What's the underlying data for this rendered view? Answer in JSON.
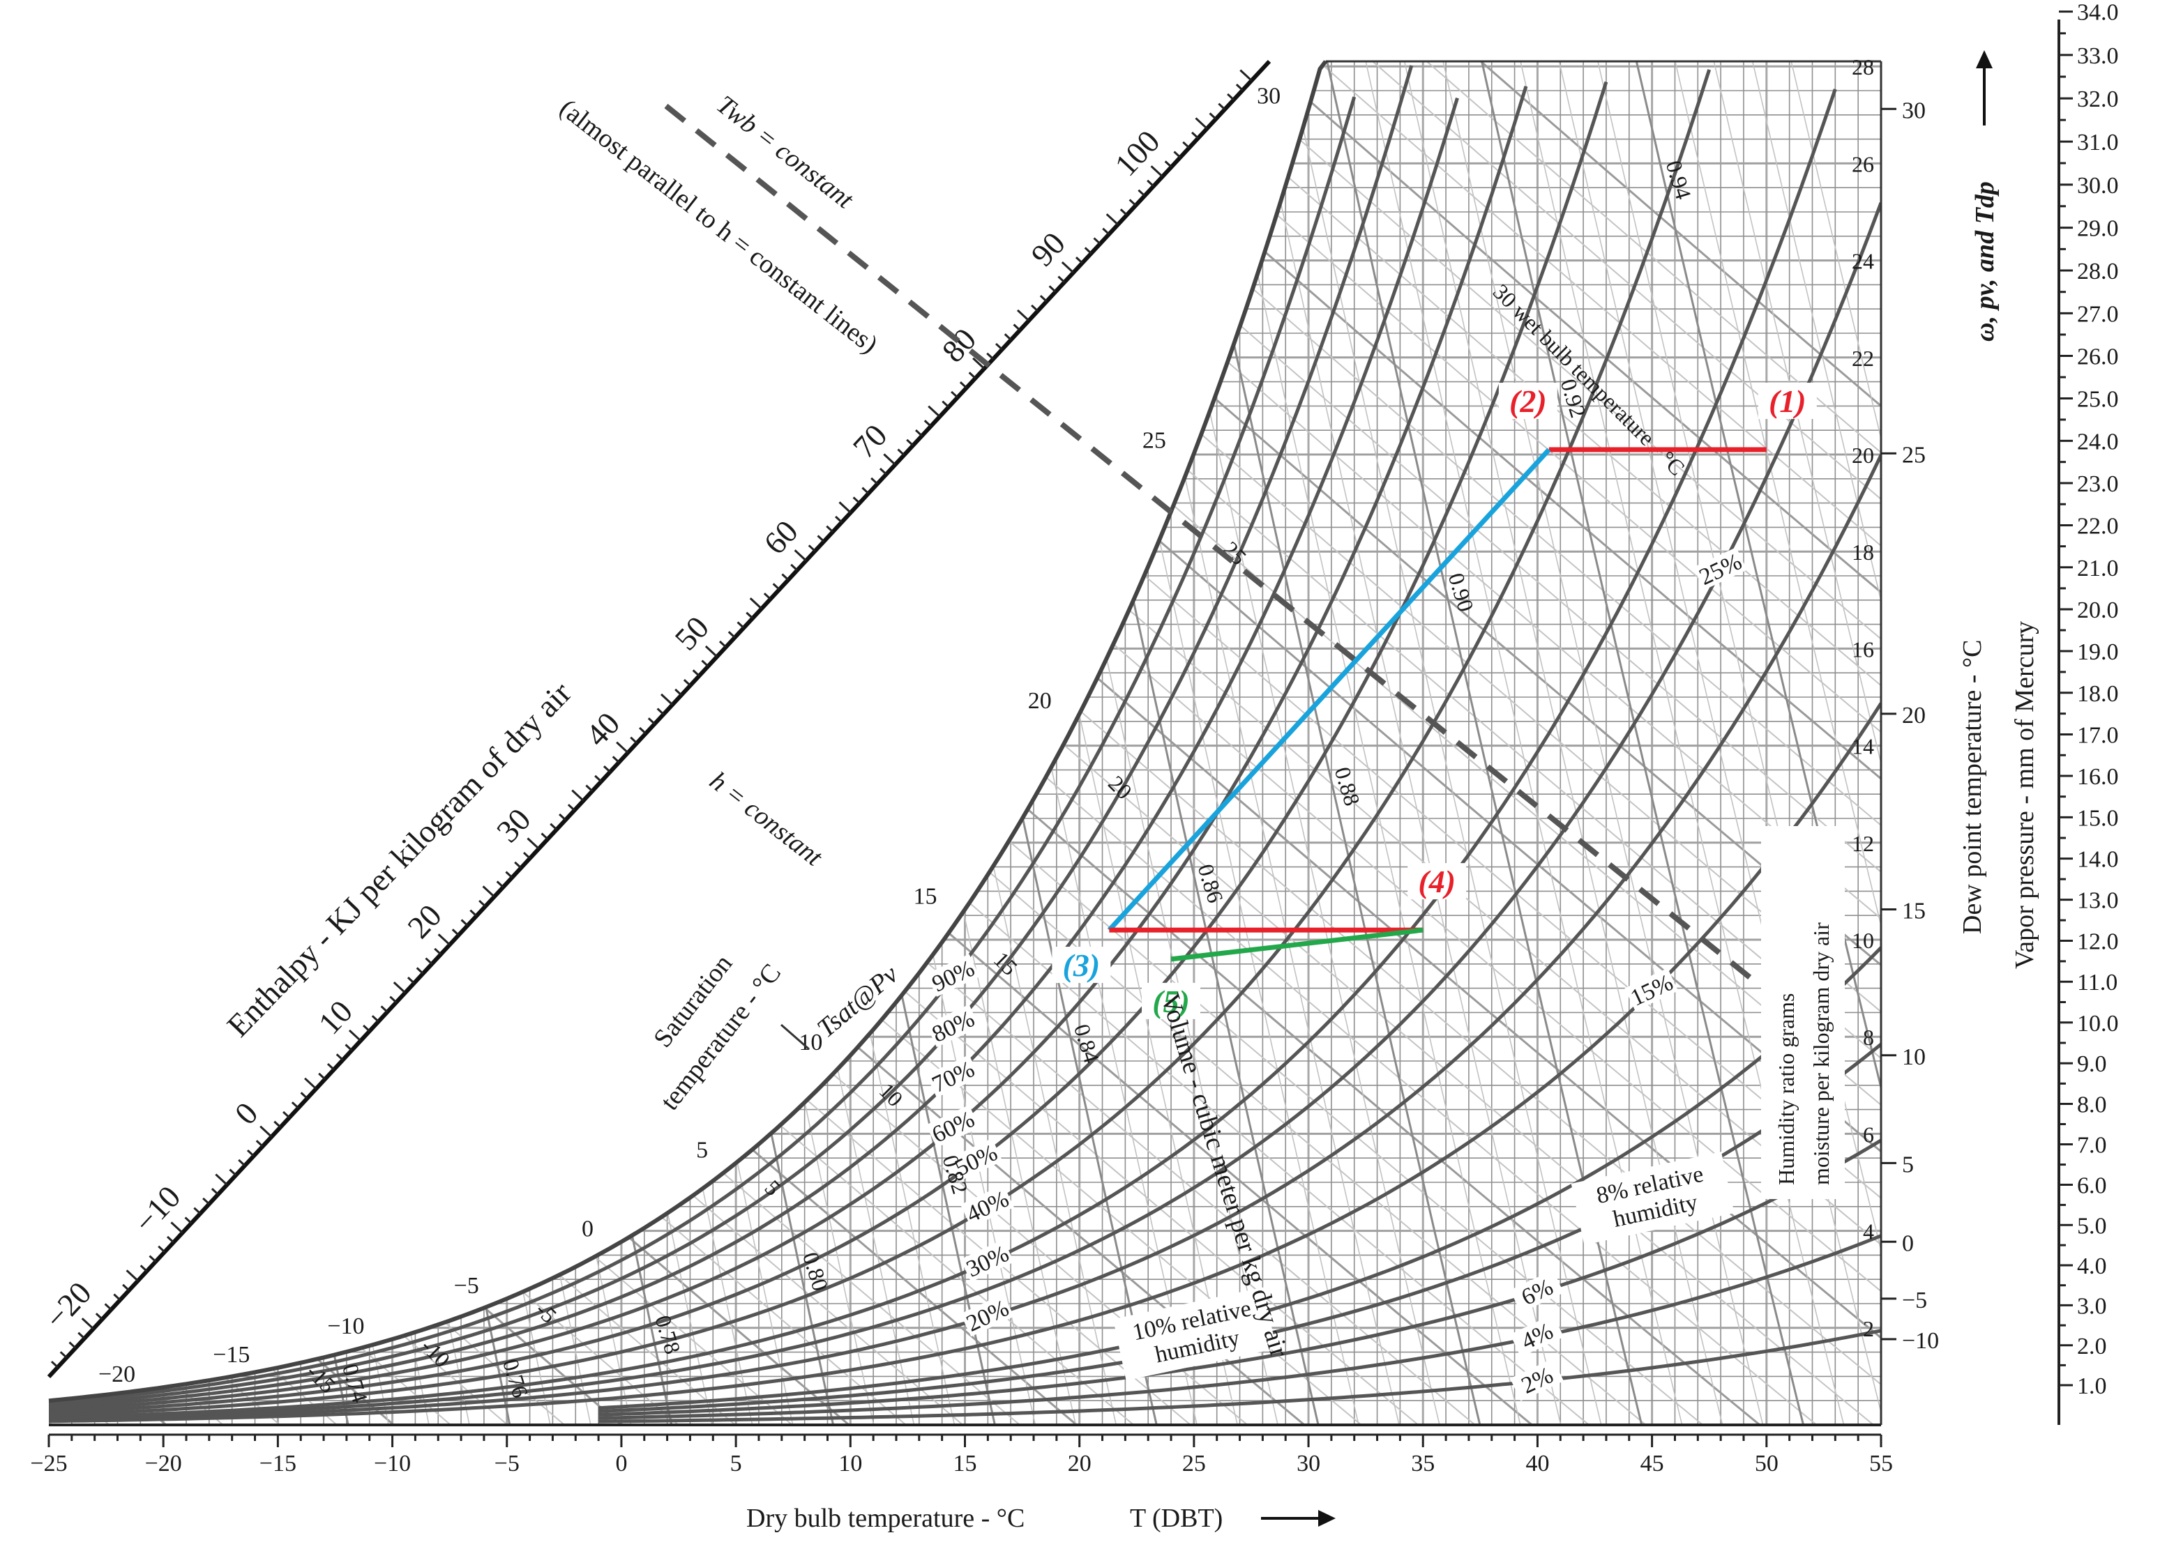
{
  "chart_data": {
    "type": "line",
    "title": "",
    "x_axis": {
      "label": "Dry bulb temperature - °C",
      "label_suffix": "T (DBT)",
      "ticks": [
        -25,
        -20,
        -15,
        -10,
        -5,
        0,
        5,
        10,
        15,
        20,
        25,
        30,
        35,
        40,
        45,
        50,
        55
      ],
      "range": [
        -25,
        55
      ]
    },
    "humidity_ratio_axis": {
      "label_line1": "Humidity ratio grams",
      "label_line2": "moisture per kilogram dry air",
      "ticks": [
        2,
        4,
        6,
        8,
        10,
        12,
        14,
        16,
        18,
        20,
        22,
        24,
        26,
        28
      ],
      "range": [
        0,
        30
      ]
    },
    "dew_point_axis": {
      "label": "Dew point temperature - °C",
      "ticks": [
        -10,
        -5,
        0,
        5,
        10,
        15,
        20,
        25,
        30
      ]
    },
    "vapor_pressure_axis": {
      "label": "Vapor pressure - mm of Mercury",
      "ticks": [
        "1.0",
        "2.0",
        "3.0",
        "4.0",
        "5.0",
        "6.0",
        "7.0",
        "8.0",
        "9.0",
        "10.0",
        "11.0",
        "12.0",
        "13.0",
        "14.0",
        "15.0",
        "16.0",
        "17.0",
        "18.0",
        "19.0",
        "20.0",
        "21.0",
        "22.0",
        "23.0",
        "24.0",
        "25.0",
        "26.0",
        "27.0",
        "28.0",
        "29.0",
        "30.0",
        "31.0",
        "32.0",
        "33.0",
        "34.0"
      ]
    },
    "top_right_label": "ω, pv, and Tdp",
    "enthalpy_scale": {
      "label": "Enthalpy - KJ per kilogram of dry air",
      "ticks": [
        -20,
        -10,
        0,
        10,
        20,
        30,
        40,
        50,
        60,
        70,
        80,
        90,
        100
      ]
    },
    "saturation_labels": [
      -20,
      -15,
      -10,
      -5,
      0,
      5,
      10,
      15,
      20,
      25,
      30
    ],
    "relative_humidity_curves": [
      {
        "rh": 2,
        "label": "2%"
      },
      {
        "rh": 4,
        "label": "4%"
      },
      {
        "rh": 6,
        "label": "6%"
      },
      {
        "rh": 8,
        "label": "8% relative humidity"
      },
      {
        "rh": 10,
        "label": "10% relative humidity"
      },
      {
        "rh": 15,
        "label": "15%"
      },
      {
        "rh": 20,
        "label": "20%"
      },
      {
        "rh": 25,
        "label": "25%"
      },
      {
        "rh": 30,
        "label": "30%"
      },
      {
        "rh": 40,
        "label": "40%"
      },
      {
        "rh": 50,
        "label": "50%"
      },
      {
        "rh": 60,
        "label": "60%"
      },
      {
        "rh": 70,
        "label": "70%"
      },
      {
        "rh": 80,
        "label": "80%"
      },
      {
        "rh": 90,
        "label": "90%"
      }
    ],
    "specific_volume_labels": [
      "0.74",
      "0.76",
      "0.78",
      "0.80",
      "0.82",
      "0.84",
      "0.86",
      "0.88",
      "0.90",
      "0.92",
      "0.94"
    ],
    "specific_volume_caption": "Volume - cubic meter per kg dry air",
    "wet_bulb_labels": [
      "-15",
      "-10",
      "-5",
      "5",
      "10",
      "15",
      "20",
      "25",
      "30 wet bulb temperature - °C"
    ],
    "annotations": {
      "twb_line1": "(almost parallel to h = constant lines)",
      "twb_line2": "Twb = constant",
      "h_constant": "h = constant",
      "sat_temp_line1": "Saturation",
      "sat_temp_line2": "temperature - °C",
      "tsat": "Tsat@Pv"
    },
    "process_points": [
      {
        "label": "(1)",
        "T": 50,
        "w": 20.1,
        "color": "#e8202a"
      },
      {
        "label": "(2)",
        "T": 40.5,
        "w": 20.1,
        "color": "#e8202a"
      },
      {
        "label": "(3)",
        "T": 21.3,
        "w": 10.2,
        "color": "#19a3dc"
      },
      {
        "label": "(4)",
        "T": 35,
        "w": 10.2,
        "color": "#e8202a"
      },
      {
        "label": "(5)",
        "T": 24,
        "w": 9.6,
        "color": "#22a84a"
      }
    ],
    "process_lines": [
      {
        "from": "(2)",
        "to": "(1)",
        "color": "#e8202a"
      },
      {
        "from": "(3)",
        "to": "(2)",
        "color": "#19a3dc"
      },
      {
        "from": "(3)",
        "to": "(4)",
        "color": "#e8202a"
      },
      {
        "from": "(5)",
        "to": "(4)",
        "color": "#22a84a"
      }
    ]
  }
}
